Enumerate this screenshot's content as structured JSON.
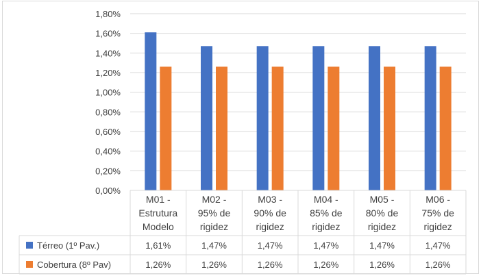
{
  "chart_data": {
    "type": "bar",
    "categories": [
      [
        "M01 -",
        "Estrutura",
        "Modelo"
      ],
      [
        "M02 -",
        "95% de",
        "rigidez"
      ],
      [
        "M03 -",
        "90% de",
        "rigidez"
      ],
      [
        "M04 -",
        "85% de",
        "rigidez"
      ],
      [
        "M05 -",
        "80% de",
        "rigidez"
      ],
      [
        "M06 -",
        "75% de",
        "rigidez"
      ]
    ],
    "series": [
      {
        "name": "Térreo (1º Pav.)",
        "color": "#4472c4",
        "values": [
          1.61,
          1.47,
          1.47,
          1.47,
          1.47,
          1.47
        ],
        "labels": [
          "1,61%",
          "1,47%",
          "1,47%",
          "1,47%",
          "1,47%",
          "1,47%"
        ]
      },
      {
        "name": "Cobertura (8º Pav)",
        "color": "#ed7d31",
        "values": [
          1.26,
          1.26,
          1.26,
          1.26,
          1.26,
          1.26
        ],
        "labels": [
          "1,26%",
          "1,26%",
          "1,26%",
          "1,26%",
          "1,26%",
          "1,26%"
        ]
      }
    ],
    "ylim": [
      0,
      1.8
    ],
    "yticks": [
      0,
      0.2,
      0.4,
      0.6,
      0.8,
      1.0,
      1.2,
      1.4,
      1.6,
      1.8
    ],
    "ytick_labels": [
      "0,00%",
      "0,20%",
      "0,40%",
      "0,60%",
      "0,80%",
      "1,00%",
      "1,20%",
      "1,40%",
      "1,60%",
      "1,80%"
    ],
    "grid": true,
    "legend": "data-table",
    "title": "",
    "xlabel": "",
    "ylabel": ""
  }
}
